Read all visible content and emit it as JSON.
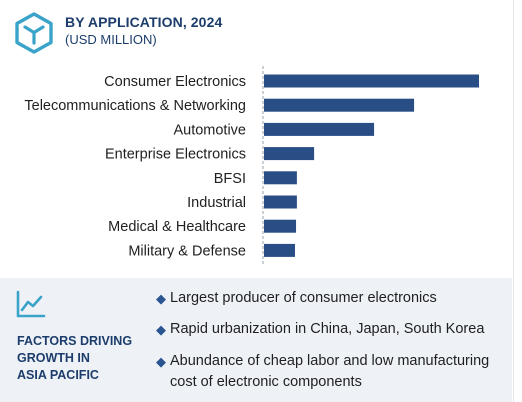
{
  "header": {
    "title": "BY APPLICATION, 2024",
    "subtitle": "(USD MILLION)",
    "logo_icon": "cube-logo-icon"
  },
  "colors": {
    "bar": "#284e85",
    "title": "#1c3d6b",
    "logo": "#3aa3c9",
    "panel_bg": "#eef2f7",
    "bullet": "#2b5590"
  },
  "chart_data": {
    "type": "bar",
    "orientation": "horizontal",
    "categories": [
      "Consumer Electronics",
      "Telecommunications & Networking",
      "Automotive",
      "Enterprise Electronics",
      "BFSI",
      "Industrial",
      "Medical & Healthcare",
      "Military & Defense"
    ],
    "values": [
      100,
      69.8,
      51.2,
      23.3,
      15.3,
      15.3,
      14.9,
      14.4
    ],
    "title": "BY APPLICATION, 2024",
    "subtitle": "(USD MILLION)",
    "xlabel": "",
    "ylabel": "",
    "xlim": [
      0,
      100
    ],
    "grid": false,
    "legend": "none",
    "value_axis_visible": false
  },
  "factors": {
    "icon": "line-chart-icon",
    "title": "FACTORS DRIVING\nGROWTH IN\nASIA PACIFIC",
    "items": [
      "Largest producer of consumer electronics",
      "Rapid urbanization in China, Japan, South Korea",
      "Abundance of cheap labor and low manufacturing cost of electronic components"
    ],
    "bullet_glyph": "◆"
  }
}
